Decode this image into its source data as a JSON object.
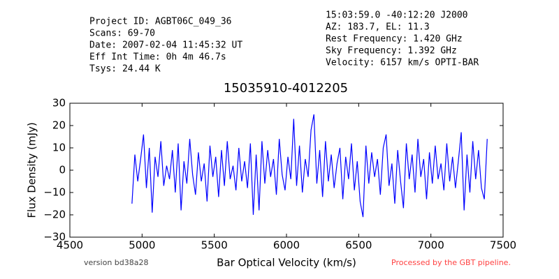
{
  "header": {
    "left": [
      "Project ID: AGBT06C_049_36",
      "Scans: 69-70",
      "Date: 2007-02-04 11:45:32 UT",
      "Eff Int Time: 0h 4m 46.7s",
      "Tsys: 24.44 K"
    ],
    "right": [
      "15:03:59.0 -40:12:20 J2000",
      "AZ: 183.7, EL: 11.3",
      "Rest Frequency:   1.420 GHz",
      "Sky Frequency:    1.392 GHz",
      "Velocity: 6157 km/s OPTI-BAR"
    ]
  },
  "footer": {
    "version": "version bd38a28",
    "pipeline": "Processed by the GBT pipeline."
  },
  "chart_data": {
    "type": "line",
    "title": "15035910-4012205",
    "x_label": "Bar Optical Velocity (km/s)",
    "y_label": "Flux Density (mJy)",
    "xlim": [
      4500,
      7500
    ],
    "xticks": [
      4500,
      5000,
      5500,
      6000,
      6500,
      7000,
      7500
    ],
    "ylim": [
      -30,
      30
    ],
    "yticks": [
      {
        "value": -30,
        "label": "−30"
      },
      {
        "value": -20,
        "label": "−20"
      },
      {
        "value": -10,
        "label": "−10"
      },
      0,
      10,
      20,
      30
    ],
    "color": "#0000ff",
    "x": [
      4930,
      4950,
      4970,
      4990,
      5010,
      5030,
      5050,
      5070,
      5090,
      5110,
      5130,
      5150,
      5170,
      5190,
      5210,
      5230,
      5250,
      5270,
      5290,
      5310,
      5330,
      5350,
      5370,
      5390,
      5410,
      5430,
      5450,
      5470,
      5490,
      5510,
      5530,
      5550,
      5570,
      5590,
      5610,
      5630,
      5650,
      5670,
      5690,
      5710,
      5730,
      5750,
      5770,
      5790,
      5810,
      5830,
      5850,
      5870,
      5890,
      5910,
      5930,
      5950,
      5970,
      5990,
      6010,
      6030,
      6050,
      6070,
      6090,
      6110,
      6130,
      6150,
      6170,
      6190,
      6210,
      6230,
      6250,
      6270,
      6290,
      6310,
      6330,
      6350,
      6370,
      6390,
      6410,
      6430,
      6450,
      6470,
      6490,
      6510,
      6530,
      6550,
      6570,
      6590,
      6610,
      6630,
      6650,
      6670,
      6690,
      6710,
      6730,
      6750,
      6770,
      6790,
      6810,
      6830,
      6850,
      6870,
      6890,
      6910,
      6930,
      6950,
      6970,
      6990,
      7010,
      7030,
      7050,
      7070,
      7090,
      7110,
      7130,
      7150,
      7170,
      7190,
      7210,
      7230,
      7250,
      7270,
      7290,
      7310,
      7330,
      7350,
      7370,
      7390
    ],
    "values": [
      -15,
      7,
      -5,
      5,
      16,
      -8,
      10,
      -19,
      6,
      -3,
      13,
      -7,
      2,
      -4,
      9,
      -10,
      12,
      -18,
      4,
      -6,
      14,
      -2,
      -11,
      8,
      -5,
      3,
      -14,
      11,
      -3,
      6,
      -12,
      9,
      -7,
      13,
      -4,
      2,
      -9,
      10,
      -5,
      4,
      -8,
      12,
      -20,
      7,
      -18,
      13,
      -6,
      9,
      -3,
      5,
      -11,
      14,
      -2,
      -9,
      6,
      -4,
      23,
      -7,
      11,
      -10,
      5,
      -3,
      18,
      25,
      -6,
      9,
      -12,
      13,
      -5,
      7,
      -8,
      3,
      10,
      -13,
      6,
      -4,
      12,
      -9,
      4,
      -14,
      -21,
      11,
      -6,
      8,
      -3,
      5,
      -11,
      10,
      16,
      -7,
      3,
      -15,
      9,
      -5,
      -17,
      12,
      -4,
      7,
      -10,
      14,
      -3,
      5,
      -13,
      8,
      -6,
      11,
      -4,
      3,
      -9,
      12,
      -5,
      6,
      -8,
      4,
      17,
      -18,
      7,
      -10,
      13,
      -4,
      9,
      -8,
      -13,
      14
    ]
  }
}
